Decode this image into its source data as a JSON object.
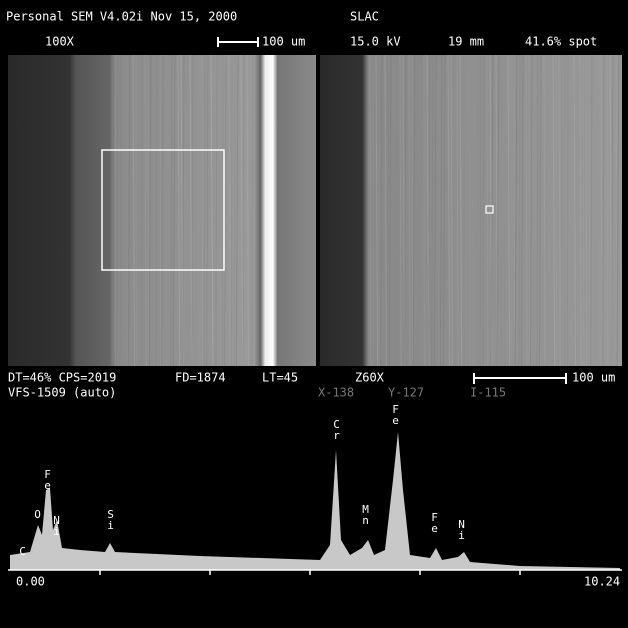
{
  "header": {
    "software": "Personal SEM V4.02i Nov 15, 2000",
    "site": "SLAC",
    "magnification": "100X",
    "scale": "100 um",
    "voltage": "15.0 kV",
    "working_distance": "19 mm",
    "spot": "41.6% spot"
  },
  "status": {
    "dt_cps": "DT=46% CPS=2019",
    "fd": "FD=1874",
    "lt": "LT=45",
    "zoom": "Z60X",
    "scale": "100 um",
    "vfs": "VFS-1509 (auto)",
    "x": "X-138",
    "y": "Y-127",
    "i": "I-115"
  },
  "spectrum": {
    "peaks": [
      {
        "label": "C"
      },
      {
        "label": "O"
      },
      {
        "label": "Fe"
      },
      {
        "label": "Ni"
      },
      {
        "label": "Si"
      },
      {
        "label": "Cr"
      },
      {
        "label": "Mn"
      },
      {
        "label": "Fe"
      },
      {
        "label": "Fe"
      },
      {
        "label": "Ni"
      }
    ],
    "axis": {
      "start": "0.00",
      "end": "10.24"
    }
  }
}
